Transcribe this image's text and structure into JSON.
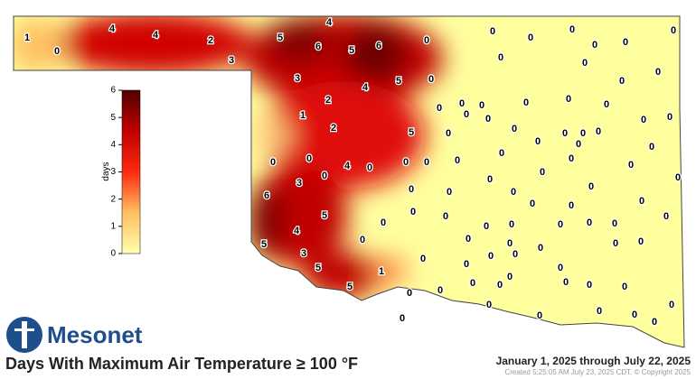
{
  "title": "Days With Maximum Air Temperature ≥ 100 °F",
  "logo": "Mesonet",
  "date_range": "January 1, 2025 through July 22, 2025",
  "created": "Created 5:25:05 AM July 23, 2025 CDT. © Copyright 2025",
  "colorbar": {
    "label": "days",
    "ticks": [
      0,
      1,
      2,
      3,
      4,
      5,
      6
    ]
  },
  "station_values": [
    1,
    0,
    4,
    4,
    2,
    3,
    5,
    4,
    6,
    5,
    6,
    0,
    0,
    0,
    0,
    0,
    0,
    0,
    0,
    0,
    0,
    3,
    4,
    5,
    0,
    2,
    0,
    0,
    1,
    0,
    0,
    0,
    0,
    0,
    0,
    0,
    0,
    0,
    2,
    5,
    0,
    0,
    0,
    0,
    0,
    0,
    0,
    0,
    0,
    0,
    4,
    0,
    0,
    0,
    0,
    0,
    0,
    0,
    0,
    3,
    0,
    0,
    0,
    0,
    0,
    6,
    0,
    0,
    0,
    0,
    0,
    0,
    0,
    5,
    0,
    4,
    0,
    0,
    0,
    0,
    0,
    0,
    0,
    5,
    0,
    0,
    0,
    0,
    0,
    3,
    0,
    0,
    0,
    0,
    5,
    1,
    0,
    0,
    0,
    0,
    0,
    0,
    0,
    5,
    0,
    0,
    0,
    0,
    0,
    0,
    0,
    0,
    0
  ]
}
